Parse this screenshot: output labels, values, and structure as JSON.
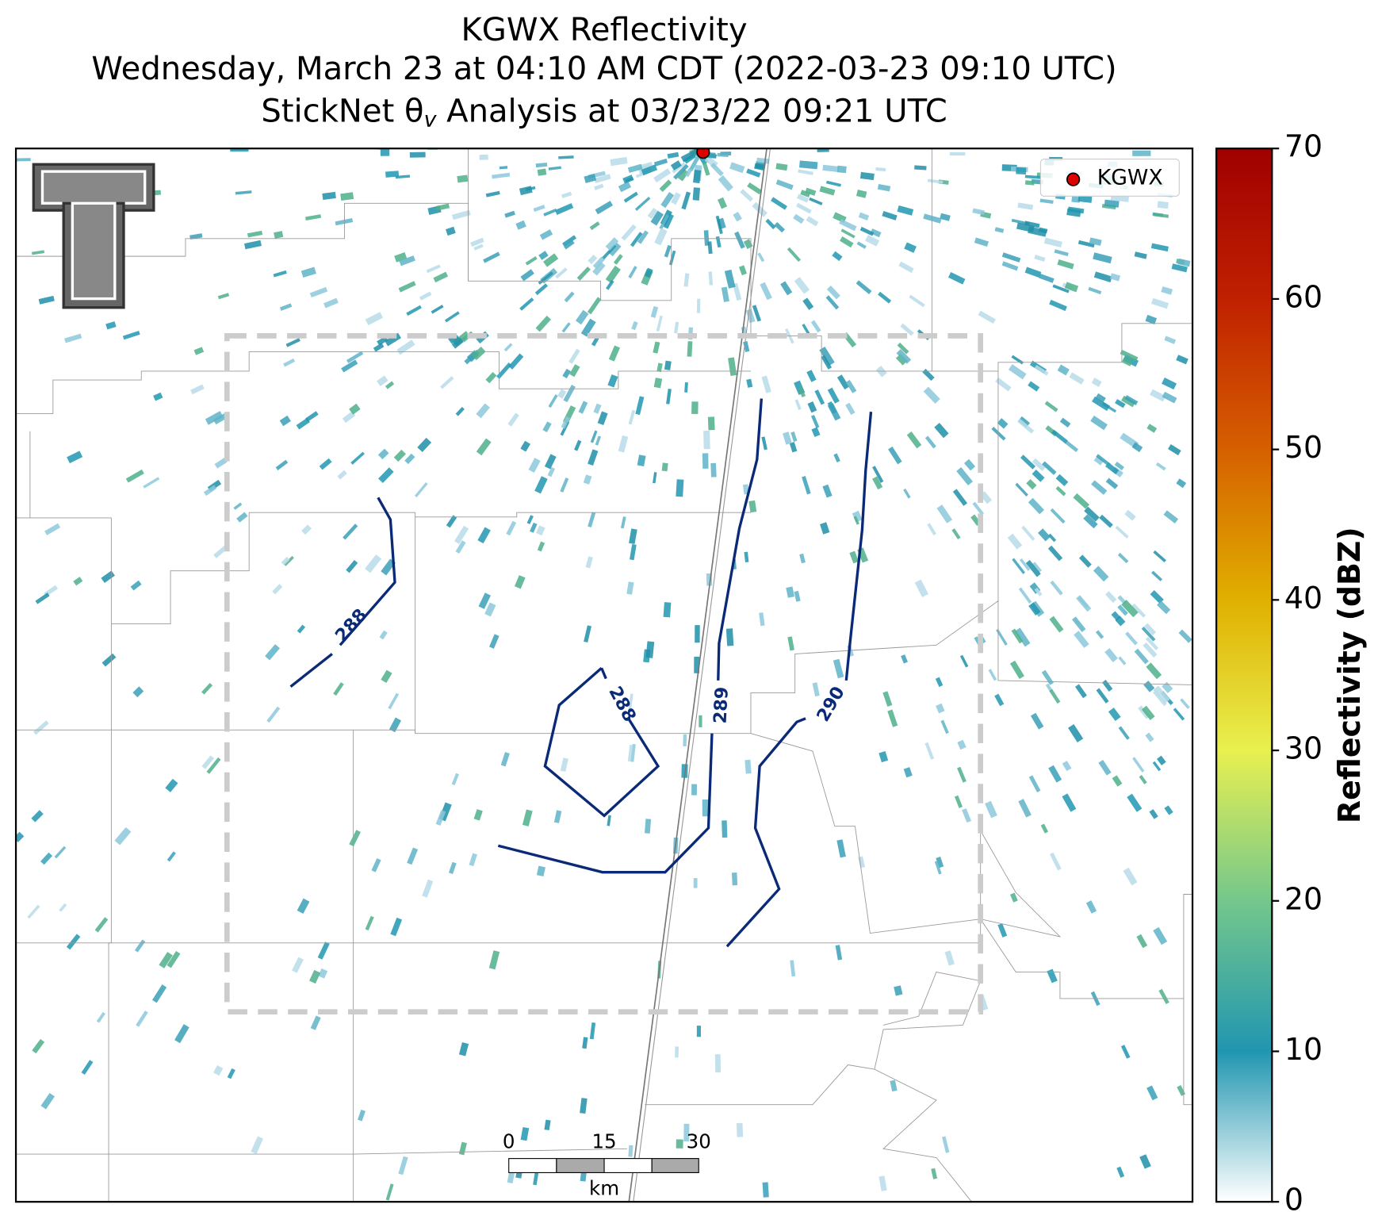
{
  "title_lines": [
    "KGWX Reflectivity",
    "Wednesday, March 23 at 04:10 AM CDT (2022-03-23 09:10 UTC)"
  ],
  "subtitle": {
    "before": "StickNet θ",
    "sub": "v",
    "after": " Analysis at 03/23/22 09:21 UTC"
  },
  "legend": {
    "label": "KGWX",
    "color": "#e00000"
  },
  "contour_labels": [
    "288",
    "288",
    "289",
    "290"
  ],
  "scale_bar": {
    "ticks": [
      "0",
      "15",
      "30"
    ],
    "unit": "km"
  },
  "chart_data": {
    "type": "colorbar",
    "label": "Reflectivity (dBZ)",
    "ylim": [
      0,
      70
    ],
    "yticks": [
      0,
      10,
      20,
      30,
      40,
      50,
      60,
      70
    ],
    "colors": [
      "#ffffff",
      "#2196b0",
      "#74c78c",
      "#e8f050",
      "#e0b000",
      "#d66000",
      "#c02000",
      "#a00000"
    ]
  }
}
